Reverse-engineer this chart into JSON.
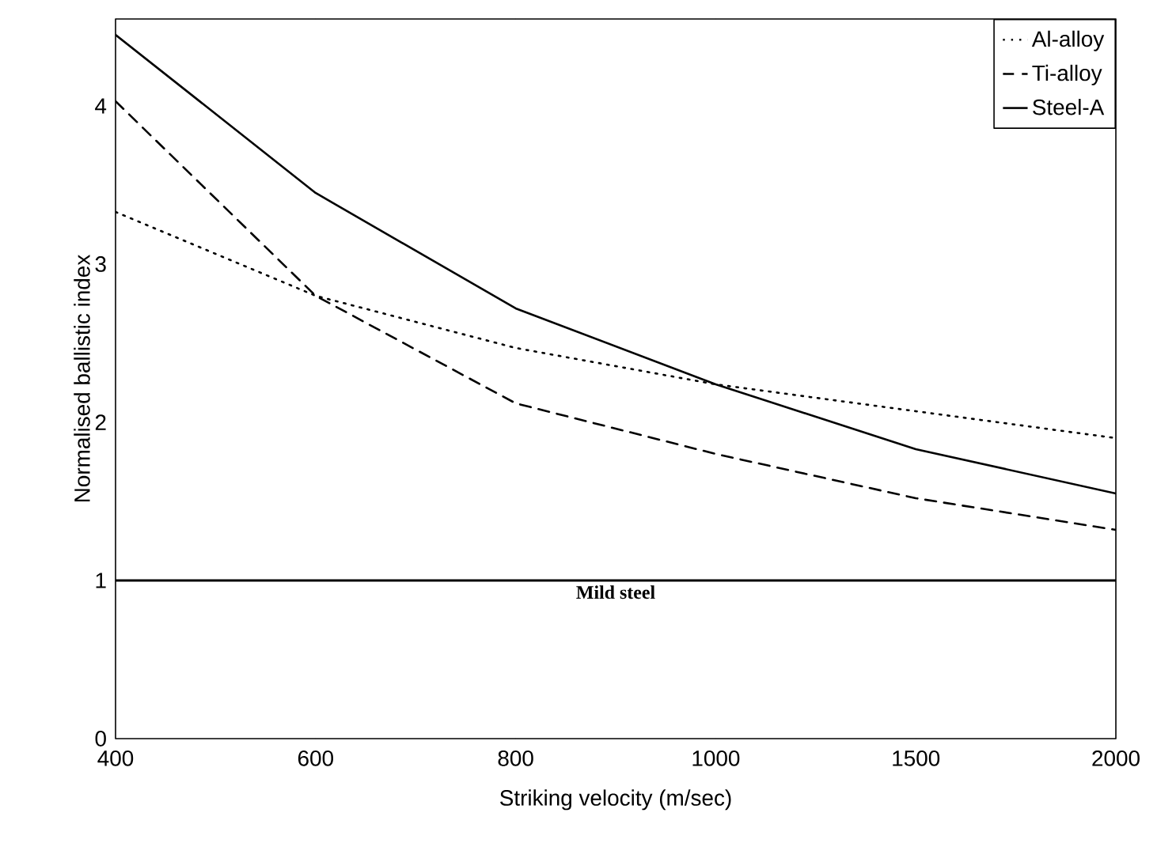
{
  "chart_data": {
    "type": "line",
    "xlabel": "Striking velocity (m/sec)",
    "ylabel": "Normalised ballistic index",
    "categories": [
      "400",
      "600",
      "800",
      "1000",
      "1500",
      "2000"
    ],
    "ylim": [
      0,
      4.55
    ],
    "yticks": [
      0,
      1,
      2,
      3,
      4
    ],
    "series": [
      {
        "name": "Al-alloy",
        "color": "#000000",
        "line_style": "dotted",
        "values": [
          3.33,
          2.8,
          2.47,
          2.24,
          2.07,
          1.9
        ]
      },
      {
        "name": "Ti-alloy",
        "color": "#000000",
        "line_style": "dashed",
        "values": [
          4.03,
          2.8,
          2.12,
          1.8,
          1.52,
          1.32
        ]
      },
      {
        "name": "Steel-A",
        "color": "#000000",
        "line_style": "solid",
        "values": [
          4.45,
          3.45,
          2.72,
          2.24,
          1.83,
          1.55
        ]
      }
    ],
    "ref_lines": [
      {
        "axis": "y",
        "value": 1,
        "label": "Mild steel",
        "color": "#000000",
        "line_style": "solid"
      }
    ],
    "legend": "top right",
    "grid": false,
    "marker": "none"
  }
}
